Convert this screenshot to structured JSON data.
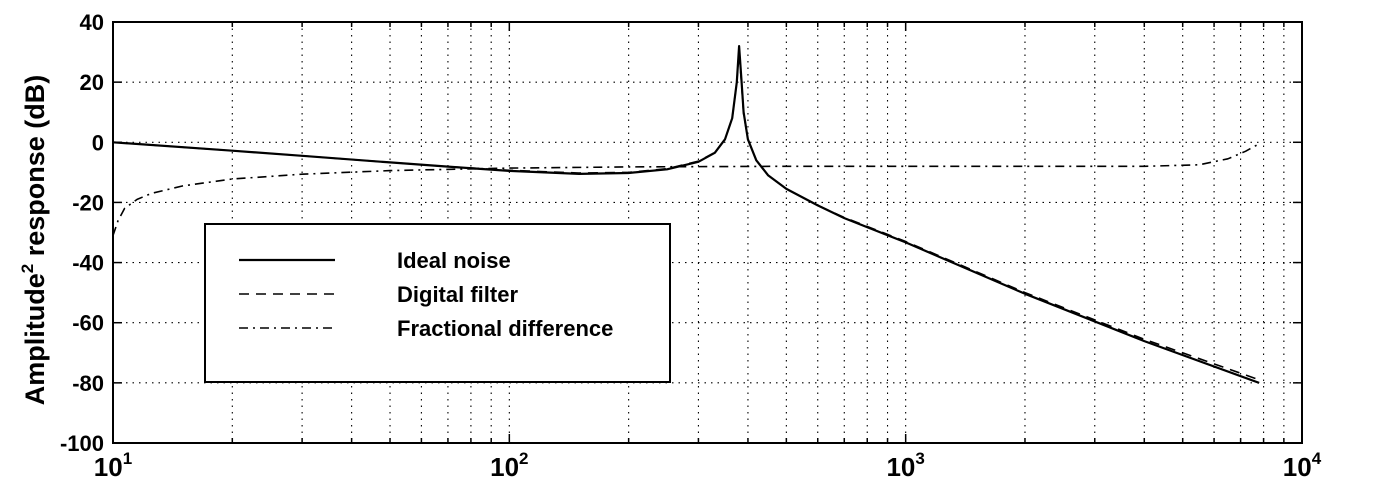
{
  "chart_data": {
    "type": "line",
    "title": "",
    "xlabel": "",
    "ylabel": "Amplitude",
    "ylabel_sup": "2",
    "ylabel_suffix": " response (dB)",
    "x_scale": "log",
    "xlim": [
      10,
      10000
    ],
    "ylim": [
      -100,
      40
    ],
    "y_ticks": [
      40,
      20,
      0,
      -20,
      -40,
      -60,
      -80,
      -100
    ],
    "x_ticks": [
      {
        "base": "10",
        "exp": "1",
        "value": 10
      },
      {
        "base": "10",
        "exp": "2",
        "value": 100
      },
      {
        "base": "10",
        "exp": "3",
        "value": 1000
      },
      {
        "base": "10",
        "exp": "4",
        "value": 10000
      }
    ],
    "grid": true,
    "legend": {
      "placement": "lower-left"
    },
    "series": [
      {
        "name": "Ideal noise",
        "style": "solid",
        "x": [
          10,
          20,
          30,
          50,
          70,
          100,
          150,
          200,
          250,
          300,
          330,
          350,
          365,
          375,
          380,
          385,
          390,
          400,
          420,
          450,
          500,
          600,
          700,
          1000,
          2000,
          4000,
          7800
        ],
        "y": [
          0,
          -2.8,
          -4.5,
          -6.7,
          -8.1,
          -9.5,
          -10.5,
          -10.2,
          -9.0,
          -6.5,
          -3.5,
          1.0,
          8.0,
          20.0,
          32.0,
          21.0,
          10.0,
          1.0,
          -6.0,
          -11.0,
          -15.5,
          -21.0,
          -25.2,
          -33.3,
          -50.4,
          -66.1,
          -80
        ]
      },
      {
        "name": "Digital filter",
        "style": "dashed",
        "x": [
          10,
          20,
          30,
          50,
          70,
          100,
          150,
          200,
          250,
          300,
          330,
          350,
          365,
          375,
          380,
          385,
          390,
          400,
          420,
          450,
          500,
          600,
          700,
          1000,
          2000,
          4000,
          7800
        ],
        "y": [
          0,
          -2.8,
          -4.5,
          -6.7,
          -8.1,
          -9.3,
          -10.2,
          -10.0,
          -8.8,
          -6.3,
          -3.4,
          1.0,
          8.0,
          20.0,
          30.0,
          20.0,
          9.5,
          1.0,
          -6.0,
          -11.0,
          -15.5,
          -21.0,
          -25.0,
          -33.0,
          -50.0,
          -65.5,
          -79
        ]
      },
      {
        "name": "Fractional difference",
        "style": "dashdot",
        "x": [
          10,
          10.3,
          10.7,
          11.5,
          12.5,
          15,
          20,
          30,
          50,
          100,
          200,
          500,
          1000,
          2000,
          4000,
          5500,
          6500,
          7200,
          7800
        ],
        "y": [
          -31,
          -26,
          -22,
          -19,
          -17,
          -14.5,
          -12.2,
          -10.6,
          -9.4,
          -8.6,
          -8.2,
          -8.0,
          -8.0,
          -8.0,
          -8.0,
          -7.5,
          -5.5,
          -3.0,
          -0.5
        ]
      }
    ]
  }
}
